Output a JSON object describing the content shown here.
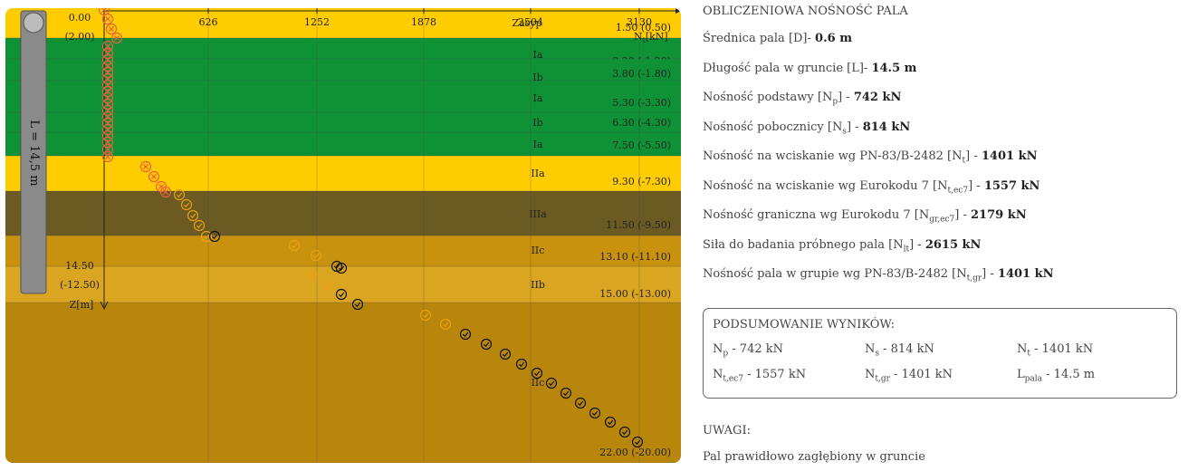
{
  "chart": {
    "x_axis_label": "N",
    "x_axis_label_sub": "t",
    "x_axis_unit": "[kN]",
    "x_ticks": [
      "626",
      "1252",
      "1878",
      "2504",
      "3130"
    ],
    "y_axis_label": "Z[m]",
    "top_label_depth": "0.00",
    "top_label_level": "(2.00)",
    "base_label_depth": "14.50",
    "base_label_level": "(-12.50)",
    "pile_label": "L = 14,5 m",
    "zasyp_label": "Zasyp",
    "layers": [
      {
        "name": "Zasyp",
        "bottom": "1.50 (0.50)",
        "color": "#ffcc00"
      },
      {
        "name": "Ia",
        "bottom": "3.20 (-1.20)",
        "color": "#0f9236"
      },
      {
        "name": "Ib",
        "bottom": "3.80 (-1.80)",
        "color": "#0f9236"
      },
      {
        "name": "Ia",
        "bottom": "5.30 (-3.30)",
        "color": "#0f9236"
      },
      {
        "name": "Ib",
        "bottom": "6.30 (-4.30)",
        "color": "#0f9236"
      },
      {
        "name": "Ia",
        "bottom": "7.50 (-5.50)",
        "color": "#0f9236"
      },
      {
        "name": "IIa",
        "bottom": "9.30 (-7.30)",
        "color": "#ffcc00"
      },
      {
        "name": "IIIa",
        "bottom": "11.50 (-9.50)",
        "color": "#6b5a22"
      },
      {
        "name": "IIc",
        "bottom": "13.10 (-11.10)",
        "color": "#c8920f"
      },
      {
        "name": "IIb",
        "bottom": "15.00 (-13.00)",
        "color": "#daa520"
      },
      {
        "name": "IIc",
        "bottom": "22.00 (-20.00)",
        "color": "#b8860b"
      }
    ]
  },
  "results": {
    "title": "OBLICZENIOWA NOŚNOŚĆ PALA",
    "rows": [
      {
        "pre": "Średnica pala [D]",
        "sub": "",
        "post": "- ",
        "value": "0.6 m"
      },
      {
        "pre": "Długość pala w gruncie [L]",
        "sub": "",
        "post": "- ",
        "value": "14.5 m"
      },
      {
        "pre": "Nośność podstawy [N",
        "sub": "p",
        "post": "] - ",
        "value": "742 kN"
      },
      {
        "pre": "Nośność pobocznicy [N",
        "sub": "s",
        "post": "] - ",
        "value": "814 kN"
      },
      {
        "pre": "Nośność na wciskanie wg PN-83/B-2482 [N",
        "sub": "t",
        "post": "] - ",
        "value": "1401 kN"
      },
      {
        "pre": "Nośność na wciskanie wg Eurokodu 7 [N",
        "sub": "t,ec7",
        "post": "] - ",
        "value": "1557 kN"
      },
      {
        "pre": "Nośność graniczna wg Eurokodu 7 [N",
        "sub": "gr,ec7",
        "post": "] - ",
        "value": "2179 kN"
      },
      {
        "pre": "Siła do badania próbnego pala [N",
        "sub": "lt",
        "post": "] - ",
        "value": "2615 kN"
      },
      {
        "pre": "Nośność pala w grupie wg PN-83/B-2482 [N",
        "sub": "t,gr",
        "post": "] - ",
        "value": "1401 kN"
      }
    ]
  },
  "summary": {
    "title": "PODSUMOWANIE WYNIKÓW:",
    "items": [
      {
        "sym": "N",
        "sub": "p",
        "text": " - 742 kN"
      },
      {
        "sym": "N",
        "sub": "s",
        "text": " - 814 kN"
      },
      {
        "sym": "N",
        "sub": "t",
        "text": " - 1401 kN"
      },
      {
        "sym": "N",
        "sub": "t,ec7",
        "text": " - 1557 kN"
      },
      {
        "sym": "N",
        "sub": "t,gr",
        "text": " - 1401 kN"
      },
      {
        "sym": "L",
        "sub": "pala",
        "text": " - 14.5 m"
      }
    ]
  },
  "notes": {
    "title": "UWAGI:",
    "text": "Pal prawidłowo zagłębiony w gruncie"
  }
}
